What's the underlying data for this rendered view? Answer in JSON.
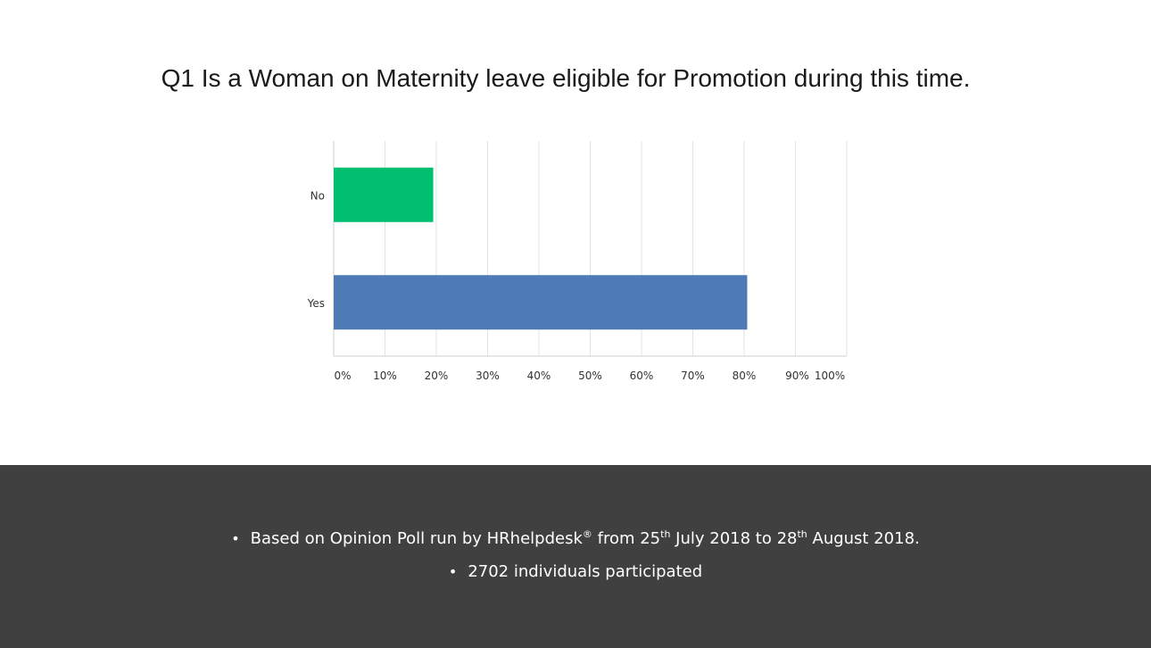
{
  "title": "Q1 Is a Woman on Maternity leave eligible for Promotion during this time.",
  "chart_data": {
    "type": "bar",
    "orientation": "horizontal",
    "categories": [
      "No",
      "Yes"
    ],
    "values": [
      19.4,
      80.6
    ],
    "unit": "%",
    "xlim": [
      0,
      100
    ],
    "xticks": [
      "0%",
      "10%",
      "20%",
      "30%",
      "40%",
      "50%",
      "60%",
      "70%",
      "80%",
      "90%",
      "100%"
    ],
    "grid": true,
    "legend": "none",
    "colors": [
      "#00bf6f",
      "#4e7bb5"
    ]
  },
  "footer": {
    "bullet": "•",
    "note1": {
      "part1": "Based on Opinion Poll run by HRhelpdesk",
      "reg_mark": "®",
      "part2": " from 25",
      "sup1": "th",
      "part3": " July 2018 to 28",
      "sup2": "th",
      "part4": " August 2018."
    },
    "note2": "2702 individuals participated"
  }
}
